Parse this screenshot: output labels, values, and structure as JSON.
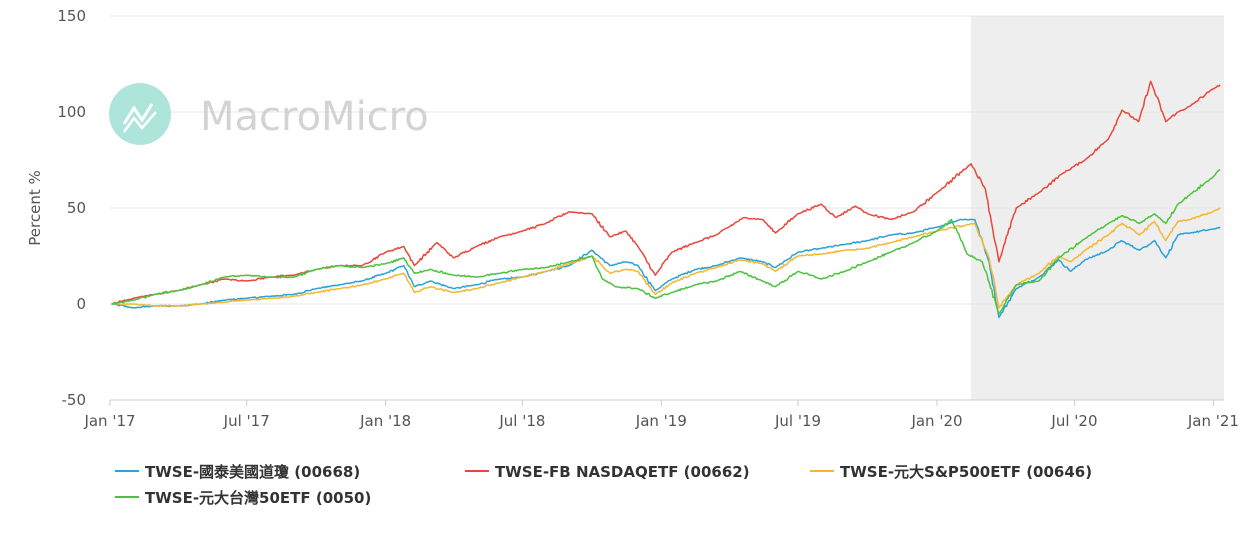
{
  "watermark": {
    "brand": "MacroMicro"
  },
  "colors": {
    "series_0668": "#29a3d8",
    "series_0662": "#e8473c",
    "series_0646": "#f5b733",
    "series_0050": "#4cc23f",
    "shade": "#eeeeee",
    "grid": "#e6e6e6"
  },
  "chart_data": {
    "type": "line",
    "title": "",
    "xlabel": "",
    "ylabel": "Percent %",
    "ylim": [
      -50,
      150
    ],
    "yticks": [
      -50,
      0,
      50,
      100,
      150
    ],
    "xlim": [
      "2017-01-01",
      "2021-01-15"
    ],
    "xticks": [
      {
        "date": "2017-01-01",
        "label": "Jan '17"
      },
      {
        "date": "2017-07-01",
        "label": "Jul '17"
      },
      {
        "date": "2018-01-01",
        "label": "Jan '18"
      },
      {
        "date": "2018-07-01",
        "label": "Jul '18"
      },
      {
        "date": "2019-01-01",
        "label": "Jan '19"
      },
      {
        "date": "2019-07-01",
        "label": "Jul '19"
      },
      {
        "date": "2020-01-01",
        "label": "Jan '20"
      },
      {
        "date": "2020-07-01",
        "label": "Jul '20"
      },
      {
        "date": "2021-01-01",
        "label": "Jan '21"
      }
    ],
    "shaded_region": [
      "2020-02-15",
      "2021-01-15"
    ],
    "grid": true,
    "legend_position": "bottom",
    "series": [
      {
        "name": "TWSE-國泰美國道瓊 (00668)",
        "color": "#29a3d8",
        "points": [
          [
            "2017-01-03",
            0
          ],
          [
            "2017-02-01",
            -2
          ],
          [
            "2017-03-01",
            -1
          ],
          [
            "2017-04-01",
            -1
          ],
          [
            "2017-05-01",
            0
          ],
          [
            "2017-06-01",
            2
          ],
          [
            "2017-07-01",
            3
          ],
          [
            "2017-08-01",
            4
          ],
          [
            "2017-09-01",
            5
          ],
          [
            "2017-10-01",
            8
          ],
          [
            "2017-11-01",
            10
          ],
          [
            "2017-12-01",
            12
          ],
          [
            "2018-01-01",
            16
          ],
          [
            "2018-01-25",
            20
          ],
          [
            "2018-02-08",
            9
          ],
          [
            "2018-03-01",
            12
          ],
          [
            "2018-04-01",
            8
          ],
          [
            "2018-05-01",
            10
          ],
          [
            "2018-06-01",
            13
          ],
          [
            "2018-07-01",
            14
          ],
          [
            "2018-08-01",
            17
          ],
          [
            "2018-09-01",
            20
          ],
          [
            "2018-10-01",
            28
          ],
          [
            "2018-10-25",
            20
          ],
          [
            "2018-11-15",
            22
          ],
          [
            "2018-12-01",
            20
          ],
          [
            "2018-12-24",
            7
          ],
          [
            "2019-01-15",
            13
          ],
          [
            "2019-02-15",
            18
          ],
          [
            "2019-03-15",
            20
          ],
          [
            "2019-04-15",
            24
          ],
          [
            "2019-05-15",
            22
          ],
          [
            "2019-06-01",
            19
          ],
          [
            "2019-07-01",
            27
          ],
          [
            "2019-08-01",
            29
          ],
          [
            "2019-09-01",
            31
          ],
          [
            "2019-10-01",
            33
          ],
          [
            "2019-11-01",
            36
          ],
          [
            "2019-12-01",
            37
          ],
          [
            "2020-01-01",
            40
          ],
          [
            "2020-02-01",
            44
          ],
          [
            "2020-02-20",
            44
          ],
          [
            "2020-03-10",
            22
          ],
          [
            "2020-03-23",
            -7
          ],
          [
            "2020-04-15",
            8
          ],
          [
            "2020-05-15",
            14
          ],
          [
            "2020-06-10",
            23
          ],
          [
            "2020-06-26",
            17
          ],
          [
            "2020-07-15",
            23
          ],
          [
            "2020-08-15",
            28
          ],
          [
            "2020-09-01",
            33
          ],
          [
            "2020-09-25",
            28
          ],
          [
            "2020-10-15",
            33
          ],
          [
            "2020-10-30",
            24
          ],
          [
            "2020-11-15",
            36
          ],
          [
            "2020-12-01",
            37
          ],
          [
            "2020-12-31",
            39
          ],
          [
            "2021-01-10",
            40
          ]
        ]
      },
      {
        "name": "TWSE-FB NASDAQETF (00662)",
        "color": "#e8473c",
        "points": [
          [
            "2017-01-03",
            0
          ],
          [
            "2017-02-01",
            3
          ],
          [
            "2017-03-01",
            5
          ],
          [
            "2017-04-01",
            7
          ],
          [
            "2017-05-01",
            10
          ],
          [
            "2017-06-01",
            13
          ],
          [
            "2017-07-01",
            12
          ],
          [
            "2017-08-01",
            14
          ],
          [
            "2017-09-01",
            15
          ],
          [
            "2017-10-01",
            18
          ],
          [
            "2017-11-01",
            20
          ],
          [
            "2017-12-01",
            20
          ],
          [
            "2018-01-01",
            27
          ],
          [
            "2018-01-25",
            30
          ],
          [
            "2018-02-08",
            20
          ],
          [
            "2018-03-10",
            32
          ],
          [
            "2018-04-01",
            24
          ],
          [
            "2018-05-01",
            30
          ],
          [
            "2018-06-01",
            35
          ],
          [
            "2018-07-01",
            38
          ],
          [
            "2018-08-01",
            42
          ],
          [
            "2018-09-01",
            48
          ],
          [
            "2018-10-01",
            47
          ],
          [
            "2018-10-25",
            35
          ],
          [
            "2018-11-15",
            38
          ],
          [
            "2018-12-01",
            30
          ],
          [
            "2018-12-24",
            15
          ],
          [
            "2019-01-15",
            27
          ],
          [
            "2019-02-15",
            32
          ],
          [
            "2019-03-15",
            36
          ],
          [
            "2019-04-20",
            45
          ],
          [
            "2019-05-15",
            44
          ],
          [
            "2019-06-01",
            37
          ],
          [
            "2019-07-01",
            47
          ],
          [
            "2019-08-01",
            52
          ],
          [
            "2019-08-20",
            45
          ],
          [
            "2019-09-15",
            51
          ],
          [
            "2019-10-01",
            47
          ],
          [
            "2019-11-01",
            44
          ],
          [
            "2019-12-01",
            48
          ],
          [
            "2020-01-01",
            58
          ],
          [
            "2020-02-15",
            73
          ],
          [
            "2020-03-05",
            60
          ],
          [
            "2020-03-23",
            22
          ],
          [
            "2020-04-15",
            50
          ],
          [
            "2020-05-15",
            58
          ],
          [
            "2020-06-15",
            68
          ],
          [
            "2020-07-15",
            75
          ],
          [
            "2020-08-15",
            86
          ],
          [
            "2020-09-02",
            101
          ],
          [
            "2020-09-24",
            95
          ],
          [
            "2020-10-10",
            116
          ],
          [
            "2020-10-30",
            95
          ],
          [
            "2020-11-15",
            100
          ],
          [
            "2020-12-01",
            103
          ],
          [
            "2020-12-31",
            112
          ],
          [
            "2021-01-10",
            114
          ]
        ]
      },
      {
        "name": "TWSE-元大S&P500ETF (00646)",
        "color": "#f5b733",
        "points": [
          [
            "2017-01-03",
            0
          ],
          [
            "2017-02-01",
            0
          ],
          [
            "2017-03-01",
            -1
          ],
          [
            "2017-04-01",
            -1
          ],
          [
            "2017-05-01",
            0
          ],
          [
            "2017-06-01",
            1
          ],
          [
            "2017-07-01",
            2
          ],
          [
            "2017-08-01",
            3
          ],
          [
            "2017-09-01",
            4
          ],
          [
            "2017-10-01",
            6
          ],
          [
            "2017-11-01",
            8
          ],
          [
            "2017-12-01",
            10
          ],
          [
            "2018-01-01",
            13
          ],
          [
            "2018-01-25",
            16
          ],
          [
            "2018-02-08",
            6
          ],
          [
            "2018-03-01",
            9
          ],
          [
            "2018-04-01",
            6
          ],
          [
            "2018-05-01",
            8
          ],
          [
            "2018-06-01",
            11
          ],
          [
            "2018-07-01",
            14
          ],
          [
            "2018-08-01",
            17
          ],
          [
            "2018-09-01",
            21
          ],
          [
            "2018-10-01",
            25
          ],
          [
            "2018-10-25",
            16
          ],
          [
            "2018-11-15",
            18
          ],
          [
            "2018-12-01",
            17
          ],
          [
            "2018-12-24",
            5
          ],
          [
            "2019-01-15",
            11
          ],
          [
            "2019-02-15",
            16
          ],
          [
            "2019-03-15",
            19
          ],
          [
            "2019-04-15",
            23
          ],
          [
            "2019-05-15",
            21
          ],
          [
            "2019-06-01",
            17
          ],
          [
            "2019-07-01",
            25
          ],
          [
            "2019-08-01",
            26
          ],
          [
            "2019-09-01",
            28
          ],
          [
            "2019-10-01",
            29
          ],
          [
            "2019-11-01",
            32
          ],
          [
            "2019-12-01",
            35
          ],
          [
            "2020-01-01",
            38
          ],
          [
            "2020-02-20",
            42
          ],
          [
            "2020-03-10",
            24
          ],
          [
            "2020-03-23",
            -2
          ],
          [
            "2020-04-15",
            10
          ],
          [
            "2020-05-15",
            16
          ],
          [
            "2020-06-10",
            25
          ],
          [
            "2020-06-26",
            22
          ],
          [
            "2020-07-15",
            28
          ],
          [
            "2020-08-15",
            36
          ],
          [
            "2020-09-02",
            42
          ],
          [
            "2020-09-25",
            36
          ],
          [
            "2020-10-15",
            43
          ],
          [
            "2020-10-30",
            33
          ],
          [
            "2020-11-15",
            43
          ],
          [
            "2020-12-01",
            44
          ],
          [
            "2020-12-31",
            48
          ],
          [
            "2021-01-10",
            50
          ]
        ]
      },
      {
        "name": "TWSE-元大台灣50ETF (0050)",
        "color": "#4cc23f",
        "points": [
          [
            "2017-01-03",
            0
          ],
          [
            "2017-02-01",
            2
          ],
          [
            "2017-03-01",
            5
          ],
          [
            "2017-04-01",
            7
          ],
          [
            "2017-05-01",
            10
          ],
          [
            "2017-06-01",
            14
          ],
          [
            "2017-07-01",
            15
          ],
          [
            "2017-08-01",
            14
          ],
          [
            "2017-09-01",
            14
          ],
          [
            "2017-10-01",
            18
          ],
          [
            "2017-11-01",
            20
          ],
          [
            "2017-12-01",
            19
          ],
          [
            "2018-01-01",
            21
          ],
          [
            "2018-01-25",
            24
          ],
          [
            "2018-02-08",
            16
          ],
          [
            "2018-03-01",
            18
          ],
          [
            "2018-04-01",
            15
          ],
          [
            "2018-05-01",
            14
          ],
          [
            "2018-06-01",
            16
          ],
          [
            "2018-07-01",
            18
          ],
          [
            "2018-08-01",
            19
          ],
          [
            "2018-09-01",
            22
          ],
          [
            "2018-10-01",
            25
          ],
          [
            "2018-10-15",
            13
          ],
          [
            "2018-11-01",
            9
          ],
          [
            "2018-12-01",
            8
          ],
          [
            "2018-12-24",
            3
          ],
          [
            "2019-01-15",
            6
          ],
          [
            "2019-02-15",
            10
          ],
          [
            "2019-03-15",
            12
          ],
          [
            "2019-04-15",
            17
          ],
          [
            "2019-05-15",
            12
          ],
          [
            "2019-06-01",
            9
          ],
          [
            "2019-07-01",
            17
          ],
          [
            "2019-08-01",
            13
          ],
          [
            "2019-09-01",
            17
          ],
          [
            "2019-10-01",
            22
          ],
          [
            "2019-11-01",
            27
          ],
          [
            "2019-12-01",
            32
          ],
          [
            "2020-01-01",
            38
          ],
          [
            "2020-01-20",
            44
          ],
          [
            "2020-02-10",
            26
          ],
          [
            "2020-03-01",
            22
          ],
          [
            "2020-03-23",
            -5
          ],
          [
            "2020-04-15",
            10
          ],
          [
            "2020-05-15",
            12
          ],
          [
            "2020-06-10",
            24
          ],
          [
            "2020-07-15",
            34
          ],
          [
            "2020-08-15",
            42
          ],
          [
            "2020-09-02",
            46
          ],
          [
            "2020-09-25",
            42
          ],
          [
            "2020-10-15",
            47
          ],
          [
            "2020-10-30",
            42
          ],
          [
            "2020-11-15",
            52
          ],
          [
            "2020-12-01",
            57
          ],
          [
            "2020-12-31",
            66
          ],
          [
            "2021-01-10",
            70
          ]
        ]
      }
    ]
  }
}
